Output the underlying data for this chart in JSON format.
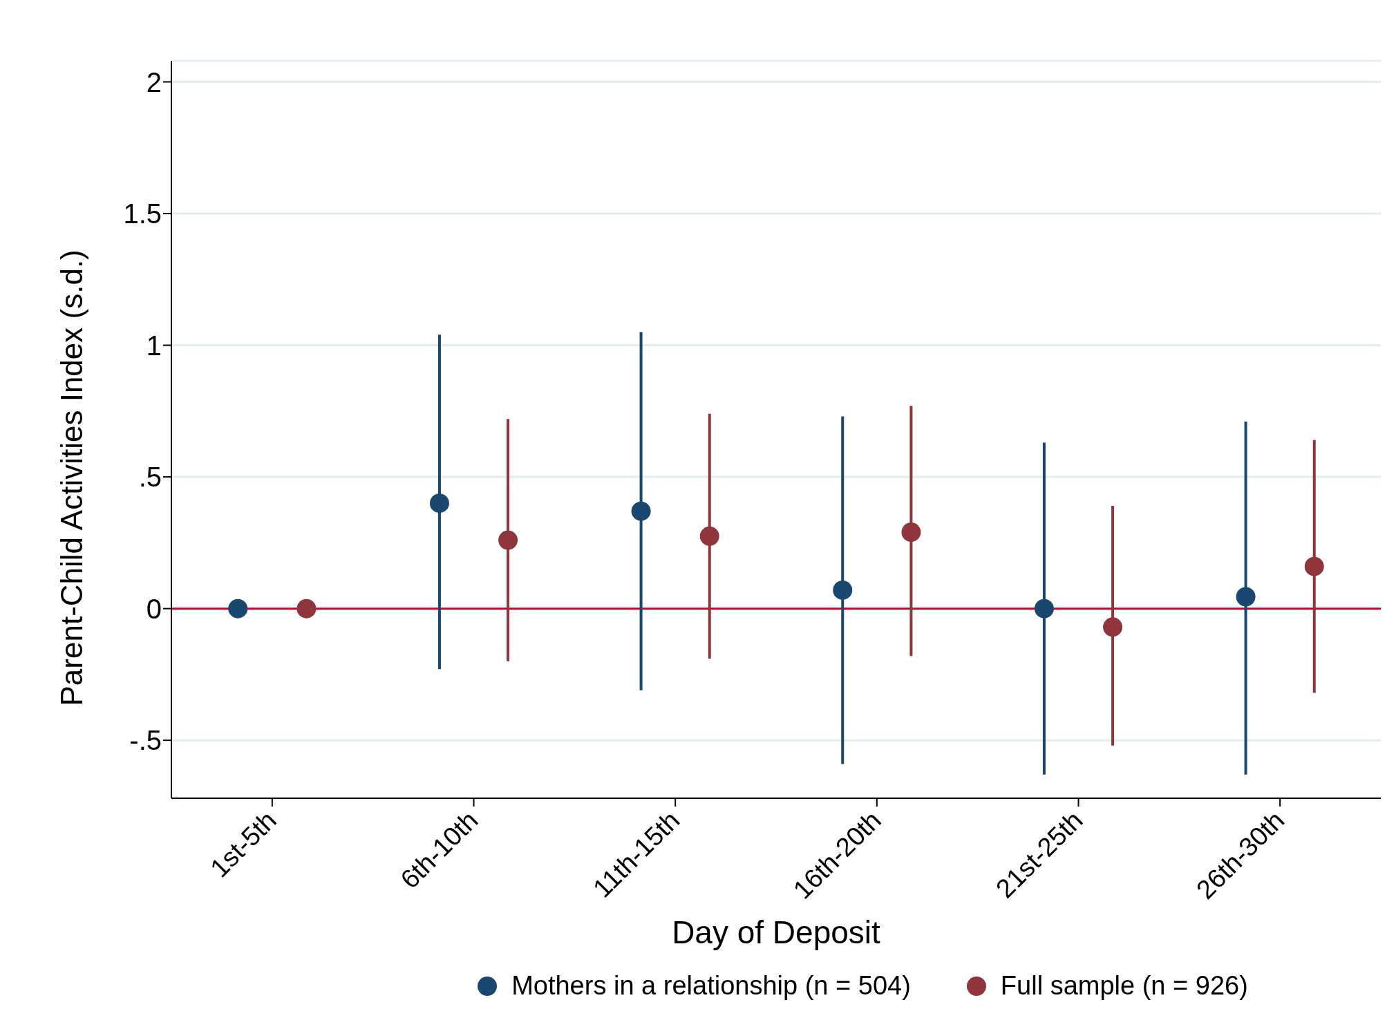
{
  "chart_data": {
    "type": "scatter",
    "xlabel": "Day of Deposit",
    "ylabel": "Parent-Child Activities Index (s.d.)",
    "categories": [
      "1st-5th",
      "6th-10th",
      "11th-15th",
      "16th-20th",
      "21st-25th",
      "26th-30th"
    ],
    "series": [
      {
        "name": "Mothers in a relationship (n = 504)",
        "color": "#1a476f",
        "values": [
          0,
          0.4,
          0.37,
          0.07,
          0.0,
          0.045
        ],
        "errors": [
          null,
          [
            -0.23,
            1.04
          ],
          [
            -0.31,
            1.05
          ],
          [
            -0.59,
            0.73
          ],
          [
            -0.63,
            0.63
          ],
          [
            -0.63,
            0.71
          ]
        ]
      },
      {
        "name": "Full sample (n = 926)",
        "color": "#90353b",
        "values": [
          0,
          0.26,
          0.275,
          0.29,
          -0.07,
          0.16
        ],
        "errors": [
          null,
          [
            -0.2,
            0.72
          ],
          [
            -0.19,
            0.74
          ],
          [
            -0.18,
            0.77
          ],
          [
            -0.52,
            0.39
          ],
          [
            -0.32,
            0.64
          ]
        ]
      }
    ],
    "ylim": [
      -0.72,
      2.08
    ],
    "yticks": [
      {
        "value": -0.5,
        "label": "-.5"
      },
      0,
      {
        "value": 0.5,
        "label": ".5"
      },
      1,
      {
        "value": 1.5,
        "label": "1.5"
      },
      2
    ],
    "ref_lines": [
      {
        "axis": "y",
        "value": 0,
        "color": "#c10534"
      }
    ],
    "grid": "y",
    "legend": "bottom",
    "marker": "circle"
  }
}
